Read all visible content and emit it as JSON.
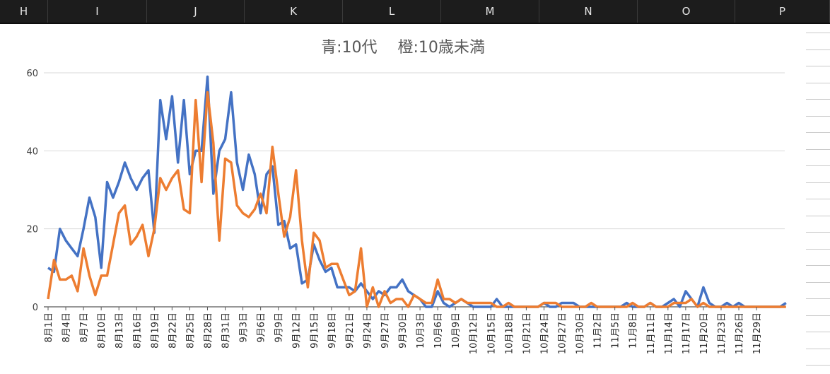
{
  "spreadsheet": {
    "columns": [
      "H",
      "I",
      "J",
      "K",
      "L",
      "M",
      "N",
      "O",
      "P"
    ]
  },
  "chart_data": {
    "type": "line",
    "title": "青:10代　 橙:10歳未満",
    "xlabel": "",
    "ylabel": "",
    "ylim": [
      0,
      60
    ],
    "yticks": [
      0,
      20,
      40,
      60
    ],
    "grid": true,
    "x_tick_labels": [
      "8月1日",
      "8月4日",
      "8月7日",
      "8月10日",
      "8月13日",
      "8月16日",
      "8月19日",
      "8月22日",
      "8月25日",
      "8月28日",
      "8月31日",
      "9月3日",
      "9月6日",
      "9月9日",
      "9月12日",
      "9月15日",
      "9月18日",
      "9月21日",
      "9月24日",
      "9月27日",
      "9月30日",
      "10月3日",
      "10月6日",
      "10月9日",
      "10月12日",
      "10月15日",
      "10月18日",
      "10月21日",
      "10月24日",
      "10月27日",
      "10月30日",
      "11月2日",
      "11月5日",
      "11月8日",
      "11月11日",
      "11月14日",
      "11月17日",
      "11月20日",
      "11月23日",
      "11月26日",
      "11月29日"
    ],
    "series": [
      {
        "color": "#4472c4",
        "values": [
          10,
          9,
          20,
          17,
          15,
          13,
          20,
          28,
          23,
          10,
          32,
          28,
          32,
          37,
          33,
          30,
          33,
          35,
          19,
          53,
          43,
          54,
          37,
          53,
          34,
          40,
          40,
          59,
          29,
          40,
          43,
          55,
          37,
          30,
          39,
          34,
          24,
          34,
          36,
          21,
          22,
          15,
          16,
          6,
          7,
          16,
          12,
          9,
          10,
          5,
          5,
          5,
          4,
          6,
          4,
          2,
          4,
          3,
          5,
          5,
          7,
          4,
          3,
          2,
          0,
          0,
          4,
          1,
          0,
          1,
          2,
          1,
          0,
          0,
          0,
          0,
          2,
          0,
          0,
          0,
          0,
          0,
          0,
          0,
          1,
          0,
          0,
          1,
          1,
          1,
          0,
          0,
          0,
          0,
          0,
          0,
          0,
          0,
          1,
          0,
          0,
          0,
          1,
          0,
          0,
          1,
          2,
          0,
          4,
          2,
          0,
          5,
          1,
          0,
          0,
          1,
          0,
          1,
          0,
          0,
          0,
          0,
          0,
          0,
          0,
          1
        ]
      },
      {
        "color": "#ed7d31",
        "values": [
          2,
          12,
          7,
          7,
          8,
          4,
          15,
          8,
          3,
          8,
          8,
          16,
          24,
          26,
          16,
          18,
          21,
          13,
          20,
          33,
          30,
          33,
          35,
          25,
          24,
          53,
          32,
          55,
          42,
          17,
          38,
          37,
          26,
          24,
          23,
          25,
          29,
          24,
          41,
          29,
          18,
          23,
          35,
          17,
          5,
          19,
          17,
          10,
          11,
          11,
          7,
          3,
          4,
          15,
          0,
          5,
          0,
          4,
          1,
          2,
          2,
          0,
          3,
          2,
          1,
          1,
          7,
          2,
          2,
          1,
          2,
          1,
          1,
          1,
          1,
          1,
          0,
          0,
          1,
          0,
          0,
          0,
          0,
          0,
          1,
          1,
          1,
          0,
          0,
          0,
          0,
          0,
          1,
          0,
          0,
          0,
          0,
          0,
          0,
          1,
          0,
          0,
          1,
          0,
          0,
          0,
          1,
          1,
          1,
          2,
          0,
          1,
          0,
          0,
          0,
          0,
          0,
          0,
          0,
          0,
          0,
          0,
          0,
          0,
          0,
          0
        ]
      }
    ]
  }
}
